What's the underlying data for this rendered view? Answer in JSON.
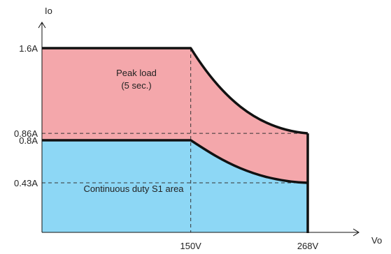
{
  "chart_data": {
    "type": "area",
    "title": "",
    "xlabel": "Vo",
    "ylabel": "Io",
    "x_ticks": [
      {
        "label": "150V",
        "value": 150
      },
      {
        "label": "268V",
        "value": 268
      }
    ],
    "y_ticks": [
      {
        "label": "1.6A",
        "value": 1.6
      },
      {
        "label": "0.86A",
        "value": 0.86
      },
      {
        "label": "0.8A",
        "value": 0.8
      },
      {
        "label": "0.43A",
        "value": 0.43
      }
    ],
    "series": [
      {
        "name": "Peak load (5 sec.)",
        "label_lines": [
          "Peak load",
          "(5 sec.)"
        ],
        "color": "#f4a7ab",
        "points": [
          [
            0,
            1.6
          ],
          [
            150,
            1.6
          ],
          [
            268,
            0.86
          ]
        ],
        "curve": "concave-up"
      },
      {
        "name": "Continuous duty S1 area",
        "label_lines": [
          "Continuous duty S1 area"
        ],
        "color": "#8dd7f5",
        "points": [
          [
            0,
            0.8
          ],
          [
            150,
            0.8
          ],
          [
            268,
            0.43
          ]
        ],
        "curve": "concave-down"
      }
    ],
    "xlim": [
      0,
      268
    ],
    "ylim": [
      0,
      1.6
    ],
    "grid": false,
    "guide_lines": "dashed"
  }
}
